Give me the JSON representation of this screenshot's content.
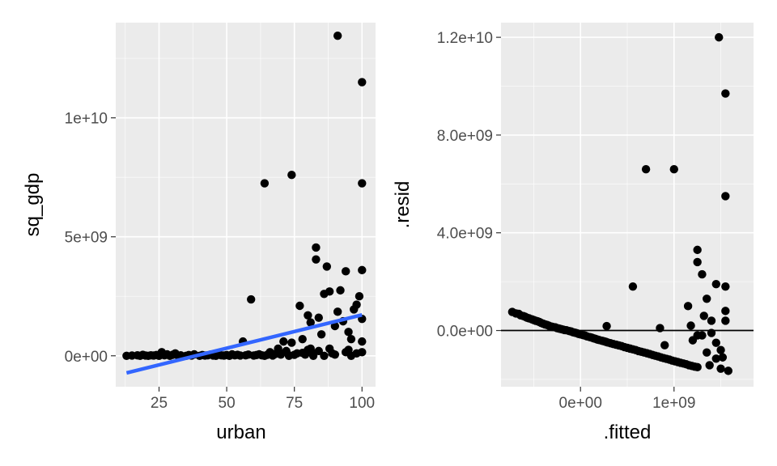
{
  "chart_data": [
    {
      "type": "scatter",
      "xlabel": "urban",
      "ylabel": "sq_gdp",
      "xlim": [
        9,
        105
      ],
      "ylim": [
        -1300000000,
        14000000000
      ],
      "x_ticks": [
        25,
        50,
        75,
        100
      ],
      "x_tick_labels": [
        "25",
        "50",
        "75",
        "100"
      ],
      "y_ticks": [
        0,
        5000000000,
        10000000000
      ],
      "y_tick_labels": [
        "0e+00",
        "5e+09",
        "1e+10"
      ],
      "grid": true,
      "overlay_line": {
        "color": "#3366ff",
        "points": [
          [
            13,
            -720000000
          ],
          [
            100,
            1720000000
          ]
        ]
      },
      "points": [
        [
          13,
          0
        ],
        [
          15,
          10000000
        ],
        [
          17,
          20000000
        ],
        [
          18,
          0
        ],
        [
          19,
          40000000
        ],
        [
          20,
          10000000
        ],
        [
          21,
          0
        ],
        [
          22,
          20000000
        ],
        [
          23,
          10000000
        ],
        [
          24,
          30000000
        ],
        [
          25,
          0
        ],
        [
          26,
          150000000
        ],
        [
          27,
          20000000
        ],
        [
          28,
          60000000
        ],
        [
          29,
          0
        ],
        [
          30,
          40000000
        ],
        [
          31,
          100000000
        ],
        [
          32,
          10000000
        ],
        [
          33,
          20000000
        ],
        [
          35,
          0
        ],
        [
          36,
          30000000
        ],
        [
          37,
          10000000
        ],
        [
          38,
          60000000
        ],
        [
          40,
          0
        ],
        [
          41,
          30000000
        ],
        [
          42,
          10000000
        ],
        [
          43,
          20000000
        ],
        [
          44,
          50000000
        ],
        [
          45,
          10000000
        ],
        [
          46,
          0
        ],
        [
          47,
          80000000
        ],
        [
          48,
          20000000
        ],
        [
          49,
          10000000
        ],
        [
          50,
          30000000
        ],
        [
          51,
          0
        ],
        [
          52,
          60000000
        ],
        [
          53,
          20000000
        ],
        [
          54,
          40000000
        ],
        [
          55,
          10000000
        ],
        [
          56,
          600000000
        ],
        [
          57,
          20000000
        ],
        [
          58,
          50000000
        ],
        [
          59,
          2370000000
        ],
        [
          60,
          10000000
        ],
        [
          61,
          30000000
        ],
        [
          62,
          60000000
        ],
        [
          63,
          20000000
        ],
        [
          64,
          7250000000
        ],
        [
          65,
          40000000
        ],
        [
          66,
          150000000
        ],
        [
          67,
          10000000
        ],
        [
          68,
          80000000
        ],
        [
          69,
          300000000
        ],
        [
          70,
          50000000
        ],
        [
          71,
          600000000
        ],
        [
          72,
          200000000
        ],
        [
          73,
          20000000
        ],
        [
          74,
          7600000000
        ],
        [
          74,
          550000000
        ],
        [
          75,
          40000000
        ],
        [
          76,
          100000000
        ],
        [
          77,
          2100000000
        ],
        [
          78,
          700000000
        ],
        [
          79,
          50000000
        ],
        [
          80,
          1700000000
        ],
        [
          81,
          300000000
        ],
        [
          81,
          1400000000
        ],
        [
          82,
          100000000
        ],
        [
          83,
          4050000000
        ],
        [
          83,
          4550000000
        ],
        [
          84,
          1600000000
        ],
        [
          85,
          900000000
        ],
        [
          86,
          2600000000
        ],
        [
          87,
          3750000000
        ],
        [
          88,
          2700000000
        ],
        [
          89,
          100000000
        ],
        [
          90,
          1250000000
        ],
        [
          91,
          13450000000
        ],
        [
          91,
          1850000000
        ],
        [
          92,
          2750000000
        ],
        [
          93,
          1450000000
        ],
        [
          94,
          3550000000
        ],
        [
          95,
          250000000
        ],
        [
          95,
          1000000000
        ],
        [
          96,
          700000000
        ],
        [
          97,
          1950000000
        ],
        [
          98,
          2150000000
        ],
        [
          99,
          2500000000
        ],
        [
          100,
          11500000000
        ],
        [
          100,
          7250000000
        ],
        [
          100,
          3600000000
        ],
        [
          100,
          1550000000
        ],
        [
          100,
          600000000
        ],
        [
          100,
          150000000
        ],
        [
          64,
          0
        ],
        [
          67,
          50000000
        ],
        [
          70,
          100000000
        ],
        [
          73,
          0
        ],
        [
          78,
          120000000
        ],
        [
          80,
          250000000
        ],
        [
          82,
          0
        ],
        [
          84,
          200000000
        ],
        [
          86,
          0
        ],
        [
          88,
          300000000
        ],
        [
          90,
          50000000
        ],
        [
          94,
          150000000
        ],
        [
          96,
          0
        ],
        [
          98,
          100000000
        ]
      ]
    },
    {
      "type": "scatter",
      "xlabel": ".fitted",
      "ylabel": ".resid",
      "xlim": [
        -850000000,
        1850000000
      ],
      "ylim": [
        -2300000000,
        12600000000
      ],
      "x_ticks": [
        0,
        1000000000
      ],
      "x_tick_labels": [
        "0e+00",
        "1e+09"
      ],
      "y_ticks": [
        0,
        4000000000,
        8000000000,
        12000000000
      ],
      "y_tick_labels": [
        "0.0e+00",
        "4.0e+09",
        "8.0e+09",
        "1.2e+10"
      ],
      "grid": true,
      "hline": 0,
      "points": [
        [
          -730000000,
          760000000
        ],
        [
          -690000000,
          700000000
        ],
        [
          -660000000,
          680000000
        ],
        [
          -640000000,
          620000000
        ],
        [
          -610000000,
          590000000
        ],
        [
          -590000000,
          560000000
        ],
        [
          -570000000,
          520000000
        ],
        [
          -550000000,
          500000000
        ],
        [
          -520000000,
          460000000
        ],
        [
          -500000000,
          430000000
        ],
        [
          -480000000,
          400000000
        ],
        [
          -460000000,
          380000000
        ],
        [
          -440000000,
          350000000
        ],
        [
          -420000000,
          310000000
        ],
        [
          -400000000,
          280000000
        ],
        [
          -380000000,
          250000000
        ],
        [
          -360000000,
          230000000
        ],
        [
          -340000000,
          200000000
        ],
        [
          -320000000,
          170000000
        ],
        [
          -300000000,
          150000000
        ],
        [
          -270000000,
          130000000
        ],
        [
          -250000000,
          100000000
        ],
        [
          -230000000,
          80000000
        ],
        [
          -210000000,
          60000000
        ],
        [
          -190000000,
          40000000
        ],
        [
          -170000000,
          20000000
        ],
        [
          -150000000,
          10000000
        ],
        [
          -120000000,
          -20000000
        ],
        [
          -100000000,
          -40000000
        ],
        [
          -80000000,
          -70000000
        ],
        [
          -60000000,
          -90000000
        ],
        [
          -40000000,
          -110000000
        ],
        [
          -20000000,
          -140000000
        ],
        [
          0,
          -160000000
        ],
        [
          30000000,
          -190000000
        ],
        [
          50000000,
          -210000000
        ],
        [
          70000000,
          -240000000
        ],
        [
          100000000,
          -270000000
        ],
        [
          120000000,
          -290000000
        ],
        [
          140000000,
          -320000000
        ],
        [
          160000000,
          -340000000
        ],
        [
          180000000,
          -370000000
        ],
        [
          200000000,
          -390000000
        ],
        [
          230000000,
          -420000000
        ],
        [
          250000000,
          -440000000
        ],
        [
          270000000,
          -460000000
        ],
        [
          290000000,
          -490000000
        ],
        [
          320000000,
          -520000000
        ],
        [
          350000000,
          -550000000
        ],
        [
          380000000,
          -580000000
        ],
        [
          410000000,
          -610000000
        ],
        [
          440000000,
          -640000000
        ],
        [
          470000000,
          -680000000
        ],
        [
          500000000,
          -710000000
        ],
        [
          530000000,
          -740000000
        ],
        [
          560000000,
          -770000000
        ],
        [
          590000000,
          -800000000
        ],
        [
          620000000,
          -840000000
        ],
        [
          650000000,
          -870000000
        ],
        [
          680000000,
          -900000000
        ],
        [
          710000000,
          -930000000
        ],
        [
          740000000,
          -960000000
        ],
        [
          770000000,
          -1000000000
        ],
        [
          800000000,
          -1030000000
        ],
        [
          830000000,
          -1060000000
        ],
        [
          860000000,
          -1100000000
        ],
        [
          890000000,
          -1130000000
        ],
        [
          920000000,
          -1160000000
        ],
        [
          950000000,
          -1190000000
        ],
        [
          980000000,
          -1230000000
        ],
        [
          1010000000,
          -1260000000
        ],
        [
          1040000000,
          -1290000000
        ],
        [
          1070000000,
          -1320000000
        ],
        [
          1100000000,
          -1350000000
        ],
        [
          1130000000,
          -1380000000
        ],
        [
          1160000000,
          -1420000000
        ],
        [
          1190000000,
          -1450000000
        ],
        [
          1220000000,
          -1480000000
        ],
        [
          1250000000,
          -1500000000
        ],
        [
          1380000000,
          -1420000000
        ],
        [
          1450000000,
          -1150000000
        ],
        [
          1500000000,
          -1560000000
        ],
        [
          1520000000,
          -1100000000
        ],
        [
          1580000000,
          -1650000000
        ],
        [
          280000000,
          180000000
        ],
        [
          560000000,
          1800000000
        ],
        [
          700000000,
          6600000000
        ],
        [
          1000000000,
          6600000000
        ],
        [
          1250000000,
          3300000000
        ],
        [
          1250000000,
          2800000000
        ],
        [
          1150000000,
          1000000000
        ],
        [
          1200000000,
          -400000000
        ],
        [
          1300000000,
          2300000000
        ],
        [
          1350000000,
          1300000000
        ],
        [
          1400000000,
          400000000
        ],
        [
          1450000000,
          1900000000
        ],
        [
          1480000000,
          12000000000
        ],
        [
          1550000000,
          9700000000
        ],
        [
          1550000000,
          5500000000
        ],
        [
          1550000000,
          1800000000
        ],
        [
          1550000000,
          800000000
        ],
        [
          1550000000,
          400000000
        ],
        [
          1450000000,
          -500000000
        ],
        [
          1350000000,
          -900000000
        ],
        [
          1250000000,
          -200000000
        ],
        [
          1180000000,
          200000000
        ],
        [
          900000000,
          -600000000
        ],
        [
          850000000,
          100000000
        ],
        [
          1300000000,
          -200000000
        ],
        [
          1400000000,
          -100000000
        ],
        [
          1500000000,
          -800000000
        ],
        [
          1320000000,
          600000000
        ]
      ]
    }
  ]
}
